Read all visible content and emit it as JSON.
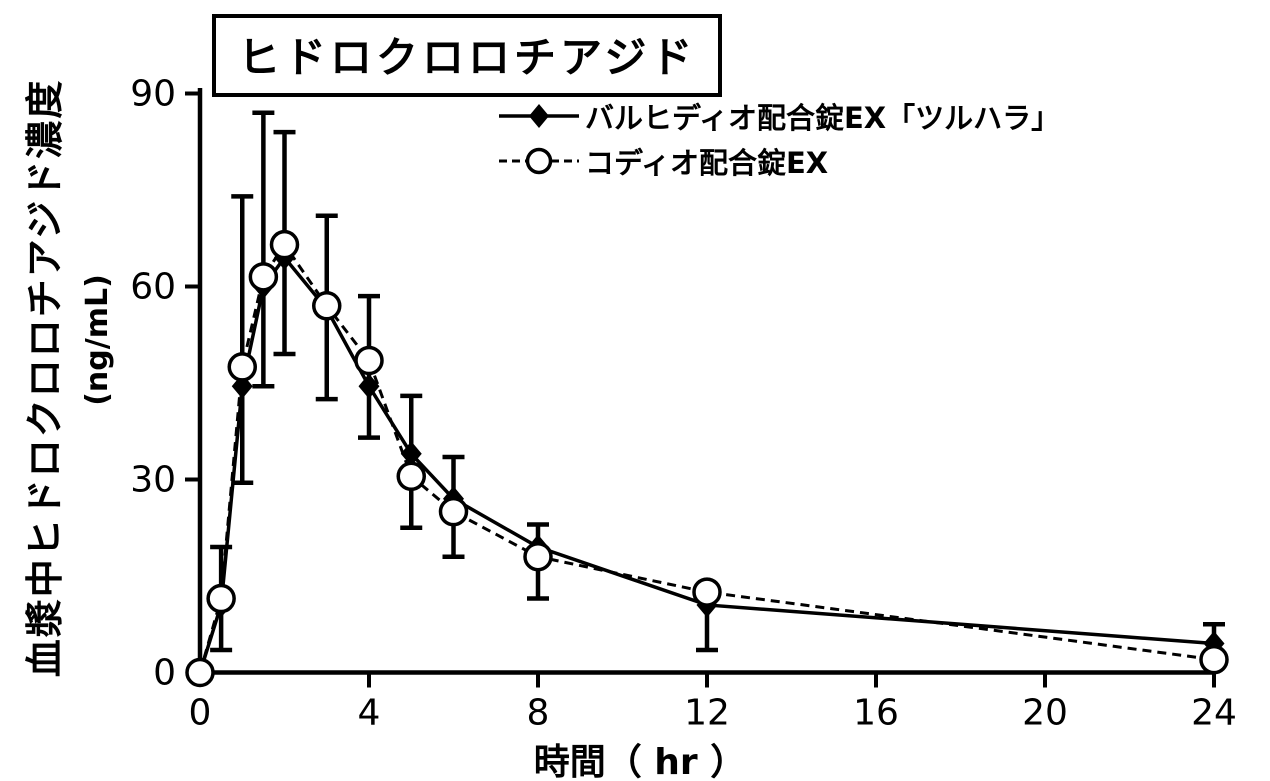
{
  "page": {
    "background_color": "#ffffff",
    "foreground_color": "#000000"
  },
  "chart_data": {
    "type": "line",
    "title": "ヒドロクロロチアジド",
    "xlabel": "時間（ hr ）",
    "ylabel": "血漿中ヒドロクロロチアジド濃度",
    "ylabel_unit": "(ng/mL)",
    "xlim": [
      0,
      24
    ],
    "ylim": [
      0,
      90
    ],
    "xticks": [
      0,
      4,
      8,
      12,
      16,
      20,
      24
    ],
    "yticks": [
      0,
      30,
      60,
      90
    ],
    "grid": false,
    "legend_position": "top-right",
    "x": [
      0,
      0.5,
      1,
      1.5,
      2,
      3,
      4,
      5,
      6,
      8,
      12,
      24
    ],
    "series": [
      {
        "name": "バルヒディオ配合錠EX「ツルハラ」",
        "marker": "filled-diamond",
        "line_style": "solid",
        "values": [
          0,
          10.5,
          44.5,
          60,
          64.5,
          56.5,
          44.5,
          34,
          27,
          19.5,
          10.5,
          4.5
        ]
      },
      {
        "name": "コディオ配合錠EX",
        "marker": "open-circle",
        "line_style": "dashed",
        "values": [
          0,
          11.5,
          47.5,
          61.5,
          66.5,
          57,
          48.5,
          30.5,
          25,
          18,
          12.5,
          2
        ]
      }
    ],
    "error_bars": [
      {
        "x": 0.5,
        "low": 3.5,
        "high": 19.5
      },
      {
        "x": 1,
        "low": 29.5,
        "high": 74
      },
      {
        "x": 1.5,
        "low": 44.5,
        "high": 87
      },
      {
        "x": 2,
        "low": 49.5,
        "high": 84
      },
      {
        "x": 3,
        "low": 42.5,
        "high": 71
      },
      {
        "x": 4,
        "low": 36.5,
        "high": 58.5
      },
      {
        "x": 5,
        "low": 22.5,
        "high": 43
      },
      {
        "x": 6,
        "low": 18,
        "high": 33.5
      },
      {
        "x": 8,
        "low": 11.5,
        "high": 23
      },
      {
        "x": 12,
        "low": 3.5,
        "high": null
      },
      {
        "x": 24,
        "low": null,
        "high": 7.5
      }
    ]
  }
}
